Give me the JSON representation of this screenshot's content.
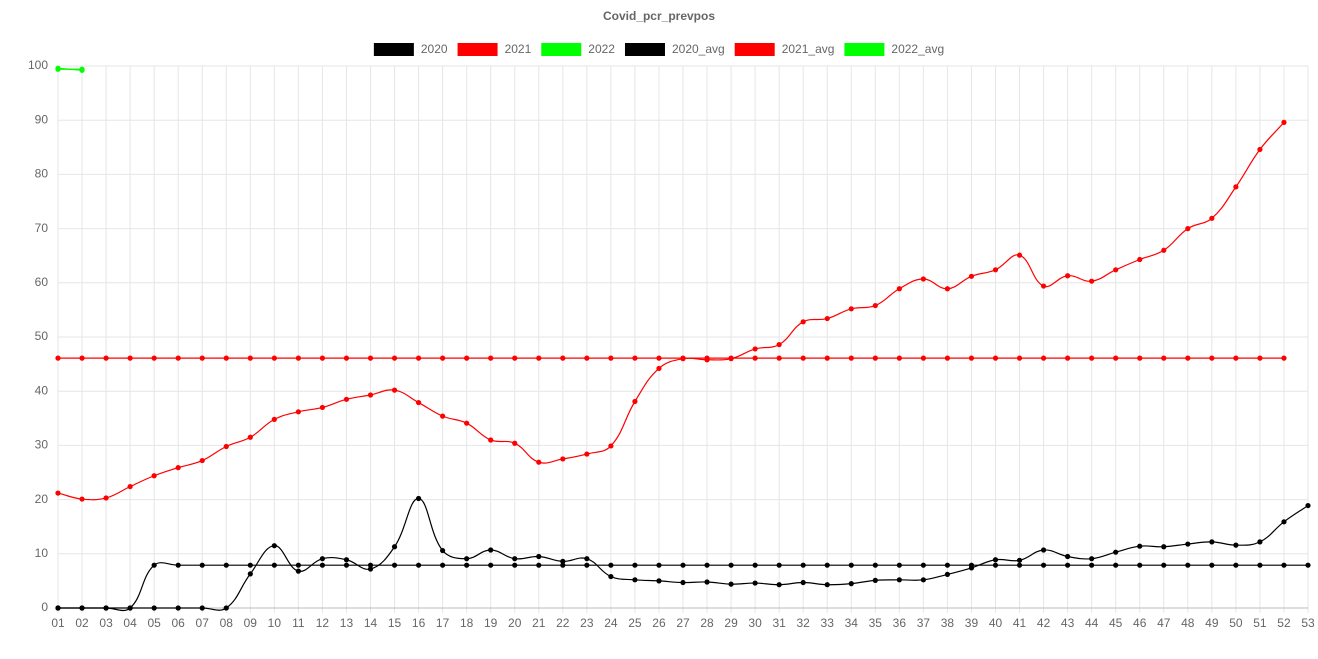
{
  "chart_data": {
    "type": "line",
    "title": "Covid_pcr_prevpos",
    "categories": [
      "01",
      "02",
      "03",
      "04",
      "05",
      "06",
      "07",
      "08",
      "09",
      "10",
      "11",
      "12",
      "13",
      "14",
      "15",
      "16",
      "17",
      "18",
      "19",
      "20",
      "21",
      "22",
      "23",
      "24",
      "25",
      "26",
      "27",
      "28",
      "29",
      "30",
      "31",
      "32",
      "33",
      "34",
      "35",
      "36",
      "37",
      "38",
      "39",
      "40",
      "41",
      "42",
      "43",
      "44",
      "45",
      "46",
      "47",
      "48",
      "49",
      "50",
      "51",
      "52",
      "53"
    ],
    "ylim": [
      0,
      100
    ],
    "yticks": [
      0,
      10,
      20,
      30,
      40,
      50,
      60,
      70,
      80,
      90,
      100
    ],
    "grid": true,
    "legend": "top",
    "series": [
      {
        "name": "2020",
        "color": "#000000",
        "values": [
          0,
          0,
          0,
          0,
          0,
          0,
          0,
          0,
          6.3,
          11.5,
          6.8,
          9.1,
          8.9,
          7.2,
          11.3,
          20.2,
          10.6,
          9.1,
          10.7,
          9.1,
          9.5,
          8.6,
          9.1,
          5.8,
          5.2,
          5.0,
          4.7,
          4.8,
          4.4,
          4.6,
          4.3,
          4.7,
          4.3,
          4.5,
          5.1,
          5.2,
          5.2,
          6.2,
          7.4,
          8.9,
          8.8,
          10.7,
          9.5,
          9.1,
          10.3,
          11.4,
          11.3,
          11.8,
          12.2,
          11.6,
          12.2,
          15.9,
          18.9
        ]
      },
      {
        "name": "2021",
        "color": "#ff0000",
        "values": [
          21.2,
          20.1,
          20.3,
          22.4,
          24.4,
          25.9,
          27.2,
          29.8,
          31.5,
          34.8,
          36.2,
          37.0,
          38.5,
          39.3,
          40.2,
          37.9,
          35.4,
          34.1,
          31.0,
          30.4,
          26.9,
          27.5,
          28.4,
          29.9,
          38.1,
          44.2,
          46.0,
          45.8,
          46.0,
          47.8,
          48.6,
          52.8,
          53.4,
          55.2,
          55.8,
          58.9,
          60.7,
          58.9,
          61.2,
          62.4,
          65.1,
          59.4,
          61.3,
          60.3,
          62.4,
          64.3,
          66.0,
          70.0,
          71.9,
          77.7,
          84.6,
          89.6,
          null
        ]
      },
      {
        "name": "2022",
        "color": "#00ff00",
        "values": [
          99.6,
          99.2,
          null,
          null,
          null,
          null,
          null,
          null,
          null,
          null,
          null,
          null,
          null,
          null,
          null,
          null,
          null,
          null,
          null,
          null,
          null,
          null,
          null,
          null,
          null,
          null,
          null,
          null,
          null,
          null,
          null,
          null,
          null,
          null,
          null,
          null,
          null,
          null,
          null,
          null,
          null,
          null,
          null,
          null,
          null,
          null,
          null,
          null,
          null,
          null,
          null,
          null,
          null
        ]
      },
      {
        "name": "2020_avg",
        "color": "#000000",
        "values": [
          0,
          0,
          0,
          0,
          7.9,
          7.9,
          7.9,
          7.9,
          7.9,
          7.9,
          7.9,
          7.9,
          7.9,
          7.9,
          7.9,
          7.9,
          7.9,
          7.9,
          7.9,
          7.9,
          7.9,
          7.9,
          7.9,
          7.9,
          7.9,
          7.9,
          7.9,
          7.9,
          7.9,
          7.9,
          7.9,
          7.9,
          7.9,
          7.9,
          7.9,
          7.9,
          7.9,
          7.9,
          7.9,
          7.9,
          7.9,
          7.9,
          7.9,
          7.9,
          7.9,
          7.9,
          7.9,
          7.9,
          7.9,
          7.9,
          7.9,
          7.9,
          7.9
        ]
      },
      {
        "name": "2021_avg",
        "color": "#ff0000",
        "values": [
          46.1,
          46.1,
          46.1,
          46.1,
          46.1,
          46.1,
          46.1,
          46.1,
          46.1,
          46.1,
          46.1,
          46.1,
          46.1,
          46.1,
          46.1,
          46.1,
          46.1,
          46.1,
          46.1,
          46.1,
          46.1,
          46.1,
          46.1,
          46.1,
          46.1,
          46.1,
          46.1,
          46.1,
          46.1,
          46.1,
          46.1,
          46.1,
          46.1,
          46.1,
          46.1,
          46.1,
          46.1,
          46.1,
          46.1,
          46.1,
          46.1,
          46.1,
          46.1,
          46.1,
          46.1,
          46.1,
          46.1,
          46.1,
          46.1,
          46.1,
          46.1,
          46.1,
          null
        ]
      },
      {
        "name": "2022_avg",
        "color": "#00ff00",
        "values": [
          99.4,
          99.4,
          null,
          null,
          null,
          null,
          null,
          null,
          null,
          null,
          null,
          null,
          null,
          null,
          null,
          null,
          null,
          null,
          null,
          null,
          null,
          null,
          null,
          null,
          null,
          null,
          null,
          null,
          null,
          null,
          null,
          null,
          null,
          null,
          null,
          null,
          null,
          null,
          null,
          null,
          null,
          null,
          null,
          null,
          null,
          null,
          null,
          null,
          null,
          null,
          null,
          null,
          null
        ]
      }
    ]
  }
}
